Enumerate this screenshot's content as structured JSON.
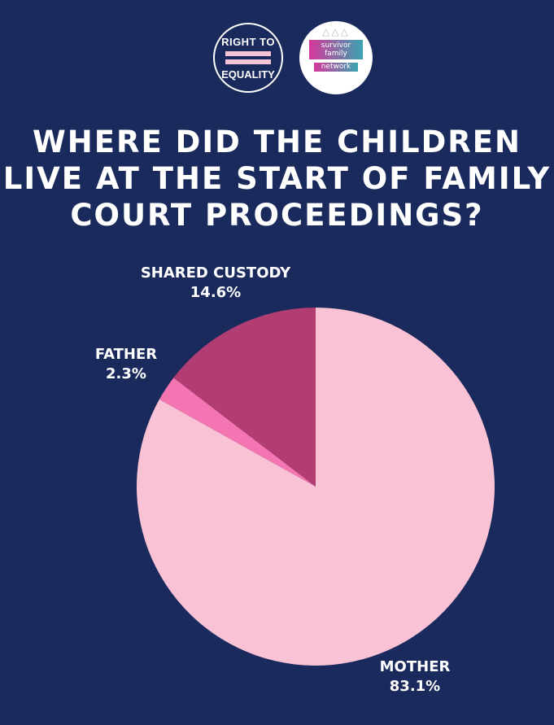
{
  "logos": {
    "right_to_equality": {
      "line1": "RIGHT TO",
      "line2": "EQUALITY"
    },
    "survivor_family_network": {
      "line1": "survivor",
      "line2": "family",
      "line3": "network"
    }
  },
  "chart_data": {
    "type": "pie",
    "title": "WHERE DID THE CHILDREN LIVE AT THE START OF FAMILY COURT PROCEEDINGS?",
    "start_angle": "12 o'clock, clockwise",
    "slices": [
      {
        "label": "MOTHER",
        "value": 83.1,
        "value_label": "83.1%",
        "color": "#f9c3d5"
      },
      {
        "label": "FATHER",
        "value": 2.3,
        "value_label": "2.3%",
        "color": "#f575b2"
      },
      {
        "label": "SHARED CUSTODY",
        "value": 14.6,
        "value_label": "14.6%",
        "color": "#b13d73"
      }
    ],
    "background": "#1b2a5c"
  }
}
